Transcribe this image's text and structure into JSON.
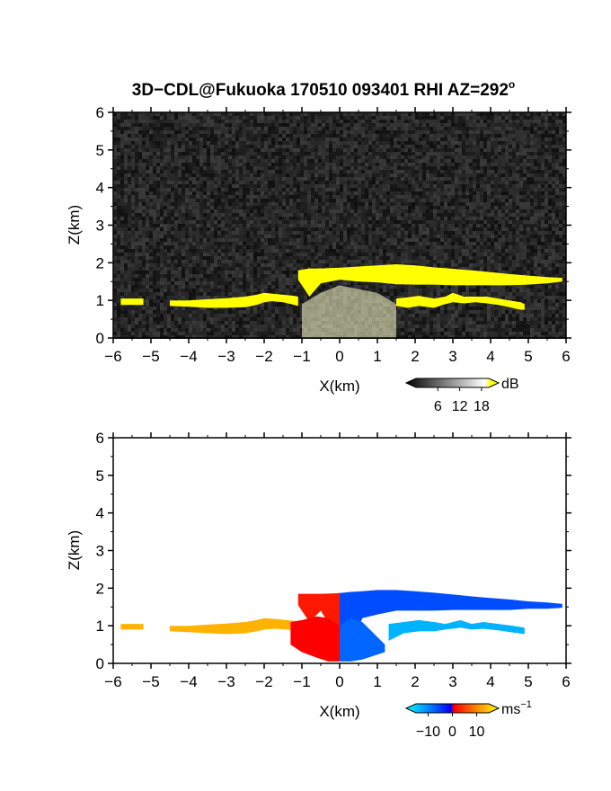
{
  "figure": {
    "title": "3D−CDL@Fukuoka 170510 093401 RHI AZ=292",
    "title_degree": "o"
  },
  "chart_data": [
    {
      "type": "heatmap",
      "variable": "reflectivity",
      "xlabel": "X(km)",
      "ylabel": "Z(km)",
      "xlim": [
        -6,
        6
      ],
      "ylim": [
        0,
        6
      ],
      "xticks": [
        "−6",
        "−5",
        "−4",
        "−3",
        "−2",
        "−1",
        "0",
        "1",
        "2",
        "3",
        "4",
        "5",
        "6"
      ],
      "yticks": [
        "0",
        "1",
        "2",
        "3",
        "4",
        "5",
        "6"
      ],
      "colorbar": {
        "unit": "dB",
        "ticks": [
          "6",
          "12",
          "18"
        ],
        "range": [
          0,
          20
        ],
        "colors": [
          "#000000",
          "#ffffff",
          "#ffff00"
        ]
      },
      "background_value": 1,
      "regions": [
        {
          "feature": "cloud layer (saturated echo)",
          "value": 20,
          "x": [
            -1.1,
            -0.8,
            -0.5,
            0.0,
            0.5,
            1.0,
            1.5,
            2.0,
            2.5,
            3.0,
            3.5,
            4.0,
            4.5,
            5.0,
            5.5,
            5.9
          ],
          "top": [
            1.8,
            1.85,
            1.85,
            1.87,
            1.9,
            1.93,
            1.96,
            1.93,
            1.88,
            1.84,
            1.8,
            1.75,
            1.7,
            1.66,
            1.62,
            1.6
          ],
          "base": [
            1.55,
            1.1,
            1.45,
            1.55,
            1.5,
            1.48,
            1.43,
            1.42,
            1.42,
            1.4,
            1.4,
            1.4,
            1.4,
            1.42,
            1.45,
            1.5
          ]
        },
        {
          "feature": "low echo band west",
          "value": 20,
          "x": [
            -5.8,
            -5.5,
            -5.2,
            -4.9,
            -4.5,
            -4.0,
            -3.5,
            -3.0,
            -2.5,
            -2.2,
            -2.0,
            -1.8,
            -1.5,
            -1.2,
            -1.1
          ],
          "top": [
            1.05,
            1.05,
            1.05,
            0.0,
            1.0,
            1.0,
            1.03,
            1.06,
            1.1,
            1.15,
            1.2,
            1.18,
            1.15,
            1.12,
            1.1
          ],
          "base": [
            0.88,
            0.88,
            0.88,
            0.0,
            0.85,
            0.83,
            0.8,
            0.8,
            0.82,
            0.88,
            0.95,
            0.98,
            0.95,
            0.88,
            0.85
          ]
        },
        {
          "feature": "low echo patches east",
          "value": 20,
          "x": [
            1.5,
            1.8,
            2.1,
            2.5,
            2.8,
            3.0,
            3.3,
            3.6,
            3.9,
            4.2,
            4.5,
            4.8,
            4.9
          ],
          "top": [
            1.05,
            1.08,
            1.12,
            1.05,
            1.1,
            1.2,
            1.1,
            1.1,
            1.1,
            1.05,
            1.0,
            0.95,
            0.9
          ],
          "base": [
            0.85,
            0.8,
            0.85,
            0.8,
            0.9,
            0.95,
            0.92,
            0.95,
            0.92,
            0.88,
            0.82,
            0.75,
            0.75
          ]
        },
        {
          "feature": "precipitation shaft below cloud",
          "value": 12,
          "x": [
            -1.0,
            -0.5,
            0.0,
            0.5,
            1.0,
            1.5
          ],
          "top": [
            0.9,
            1.2,
            1.4,
            1.3,
            1.2,
            0.9
          ],
          "base": [
            0.0,
            0.0,
            0.0,
            0.0,
            0.0,
            0.0
          ]
        }
      ]
    },
    {
      "type": "heatmap",
      "variable": "radial velocity",
      "xlabel": "X(km)",
      "ylabel": "Z(km)",
      "xlim": [
        -6,
        6
      ],
      "ylim": [
        0,
        6
      ],
      "xticks": [
        "−6",
        "−5",
        "−4",
        "−3",
        "−2",
        "−1",
        "0",
        "1",
        "2",
        "3",
        "4",
        "5",
        "6"
      ],
      "yticks": [
        "0",
        "1",
        "2",
        "3",
        "4",
        "5",
        "6"
      ],
      "colorbar": {
        "unit": "ms",
        "unit_exponent": "−1",
        "ticks": [
          "−10",
          "0",
          "10"
        ],
        "range": [
          -15,
          15
        ],
        "colors": [
          "#00ffff",
          "#0000ff",
          "#ff0000",
          "#ffff00"
        ]
      },
      "regions": [
        {
          "feature": "cloud layer west of radar",
          "value": 6,
          "x": [
            -1.1,
            -0.8,
            -0.5,
            -0.2,
            0.0
          ],
          "top": [
            1.85,
            1.85,
            1.85,
            1.86,
            1.87
          ],
          "base": [
            1.55,
            1.1,
            1.4,
            0.9,
            0.1
          ]
        },
        {
          "feature": "cloud layer east of radar",
          "value": -8,
          "x": [
            0.0,
            0.3,
            0.6,
            1.0,
            1.5,
            2.0,
            2.5,
            3.0,
            3.5,
            4.0,
            4.5,
            5.0,
            5.5,
            5.9
          ],
          "top": [
            1.87,
            1.9,
            1.92,
            1.95,
            1.95,
            1.92,
            1.88,
            1.83,
            1.78,
            1.74,
            1.7,
            1.65,
            1.62,
            1.58
          ],
          "base": [
            0.1,
            0.4,
            1.2,
            1.3,
            1.4,
            1.4,
            1.4,
            1.42,
            1.42,
            1.42,
            1.42,
            1.45,
            1.45,
            1.48
          ]
        },
        {
          "feature": "low echo band west",
          "value": 12,
          "x": [
            -5.8,
            -5.5,
            -5.2,
            -4.9,
            -4.5,
            -4.0,
            -3.5,
            -3.0,
            -2.5,
            -2.2,
            -2.0,
            -1.7,
            -1.4,
            -1.1
          ],
          "top": [
            1.05,
            1.05,
            1.05,
            0.0,
            1.0,
            1.0,
            1.03,
            1.06,
            1.1,
            1.15,
            1.2,
            1.18,
            1.15,
            1.12
          ],
          "base": [
            0.9,
            0.9,
            0.9,
            0.0,
            0.85,
            0.83,
            0.8,
            0.78,
            0.8,
            0.85,
            0.9,
            0.92,
            0.9,
            0.85
          ]
        },
        {
          "feature": "outflow below cloud",
          "value": 5,
          "x": [
            -1.3,
            -1.0,
            -0.6,
            -0.3,
            0.0
          ],
          "top": [
            1.1,
            1.15,
            1.25,
            1.2,
            1.0
          ],
          "base": [
            0.5,
            0.3,
            0.15,
            0.05,
            0.05
          ]
        },
        {
          "feature": "east low patches",
          "value": -12,
          "x": [
            1.3,
            1.7,
            2.1,
            2.5,
            2.8,
            3.2,
            3.5,
            3.8,
            4.2,
            4.6,
            4.9
          ],
          "top": [
            1.05,
            1.1,
            1.15,
            1.1,
            1.05,
            1.15,
            1.05,
            1.1,
            1.05,
            1.0,
            0.95
          ],
          "base": [
            0.6,
            0.8,
            0.85,
            0.85,
            0.9,
            0.95,
            0.9,
            0.92,
            0.88,
            0.82,
            0.78
          ]
        },
        {
          "feature": "below-cloud east scatter",
          "value": -9,
          "x": [
            0.0,
            0.3,
            0.6,
            0.9,
            1.2
          ],
          "top": [
            1.0,
            1.2,
            1.1,
            0.8,
            0.5
          ],
          "base": [
            0.05,
            0.05,
            0.1,
            0.2,
            0.3
          ]
        }
      ]
    }
  ]
}
